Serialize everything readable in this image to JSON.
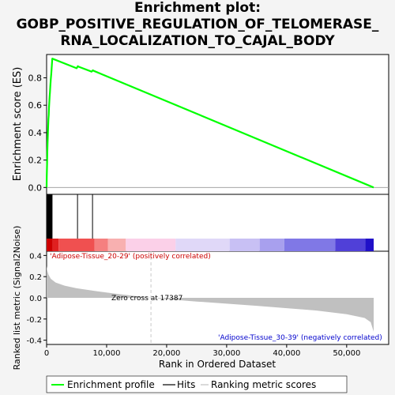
{
  "title_lines": [
    "Enrichment plot:",
    "GOBP_POSITIVE_REGULATION_OF_TELOMERASE_",
    "RNA_LOCALIZATION_TO_CAJAL_BODY"
  ],
  "colors": {
    "es_line": "#00ff00",
    "hits": "#000000",
    "metric_fill": "#c0c0c0",
    "pos_label": "#cc0000",
    "neg_label": "#0000cc",
    "zero_cross_line": "#c8c8c8"
  },
  "chart_data": [
    {
      "type": "line",
      "panel": "enrichment",
      "ylabel": "Enrichment score (ES)",
      "ylim": [
        -0.05,
        0.97
      ],
      "yticks": [
        0.0,
        0.2,
        0.4,
        0.6,
        0.8
      ],
      "ytick_labels": [
        "0.0",
        "0.2",
        "0.4",
        "0.6",
        "0.8"
      ],
      "xlim": [
        0,
        57000
      ],
      "grid": false,
      "series": [
        {
          "x": [
            0,
            30,
            80,
            120,
            160,
            200,
            250,
            300,
            350,
            400,
            450,
            500,
            560,
            620,
            700,
            780,
            860,
            950,
            5000,
            5200,
            5400,
            7500,
            7700,
            7900,
            54500
          ],
          "y": [
            0.0,
            0.08,
            0.17,
            0.26,
            0.32,
            0.37,
            0.44,
            0.5,
            0.53,
            0.58,
            0.62,
            0.66,
            0.7,
            0.74,
            0.79,
            0.83,
            0.88,
            0.94,
            0.87,
            0.885,
            0.88,
            0.845,
            0.855,
            0.85,
            0.0
          ]
        }
      ]
    },
    {
      "type": "hits",
      "panel": "hits",
      "hit_positions": [
        130,
        200,
        260,
        330,
        400,
        470,
        540,
        600,
        680,
        760,
        830,
        910,
        5150,
        7650
      ],
      "color_band": [
        "#cc0000",
        "#e02020",
        "#f05050",
        "#f58080",
        "#f8b0b0",
        "#fbd0e8",
        "#e0d8f8",
        "#c8c0f4",
        "#a8a0ee",
        "#8078e6",
        "#5040d8",
        "#2010c8",
        "#4010a0"
      ],
      "color_band_bounds": [
        0,
        1000,
        2000,
        8000,
        10200,
        13200,
        21500,
        30500,
        35500,
        39600,
        48100,
        53100,
        54500
      ]
    },
    {
      "type": "area",
      "panel": "ranked_metric",
      "xlabel": "Rank in Ordered Dataset",
      "ylabel": "Ranked list metric (Signal2Noise)",
      "ylim": [
        -0.44,
        0.44
      ],
      "yticks": [
        -0.4,
        -0.2,
        0.0,
        0.2,
        0.4
      ],
      "ytick_labels": [
        "-0.4",
        "-0.2",
        "0.0",
        "0.2",
        "0.4"
      ],
      "xlim": [
        0,
        57000
      ],
      "xticks": [
        0,
        10000,
        20000,
        30000,
        40000,
        50000
      ],
      "xtick_labels": [
        "0",
        "10,000",
        "20,000",
        "30,000",
        "40,000",
        "50,000"
      ],
      "x": [
        0,
        100,
        300,
        700,
        1500,
        3000,
        5000,
        8000,
        12000,
        17387,
        25000,
        35000,
        45000,
        50000,
        53000,
        54000,
        54500
      ],
      "values": [
        0.3,
        0.26,
        0.22,
        0.18,
        0.145,
        0.115,
        0.09,
        0.065,
        0.035,
        0.0,
        -0.035,
        -0.075,
        -0.12,
        -0.155,
        -0.19,
        -0.23,
        -0.32
      ],
      "zero_cross": 17387,
      "zero_cross_label": "Zero cross at 17387",
      "pos_label": "'Adipose-Tissue_20-29' (positively correlated)",
      "neg_label": "'Adipose-Tissue_30-39' (negatively correlated)"
    }
  ],
  "legend": {
    "items": [
      "Enrichment profile",
      "Hits",
      "Ranking metric scores"
    ],
    "placement": "bottom"
  }
}
